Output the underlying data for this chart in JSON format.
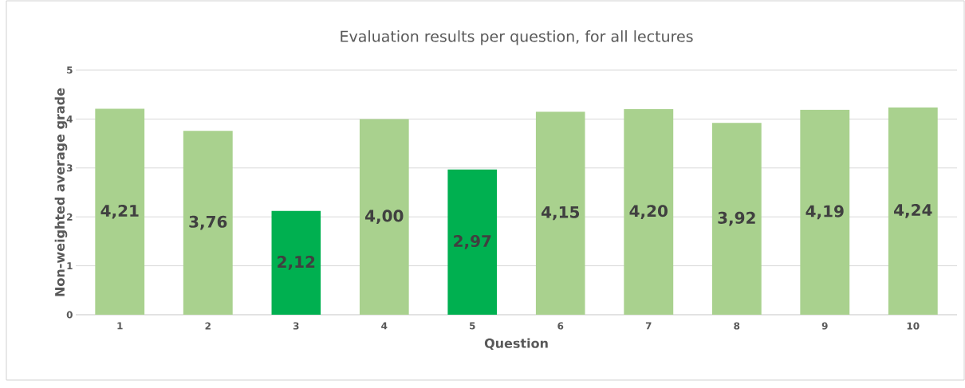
{
  "chart_data": {
    "type": "bar",
    "title": "Evaluation results per question, for all lectures",
    "xlabel": "Question",
    "ylabel": "Non-weighted average grade",
    "categories": [
      "1",
      "2",
      "3",
      "4",
      "5",
      "6",
      "7",
      "8",
      "9",
      "10"
    ],
    "values": [
      4.21,
      3.76,
      2.12,
      4.0,
      2.97,
      4.15,
      4.2,
      3.92,
      4.19,
      4.24
    ],
    "value_labels": [
      "4,21",
      "3,76",
      "2,12",
      "4,00",
      "2,97",
      "4,15",
      "4,20",
      "3,92",
      "4,19",
      "4,24"
    ],
    "colors": [
      "#a9d18e",
      "#a9d18e",
      "#00b050",
      "#a9d18e",
      "#00b050",
      "#a9d18e",
      "#a9d18e",
      "#a9d18e",
      "#a9d18e",
      "#a9d18e"
    ],
    "ylim": [
      0,
      5
    ],
    "yticks": [
      0,
      1,
      2,
      3,
      4,
      5
    ],
    "grid": "y"
  }
}
